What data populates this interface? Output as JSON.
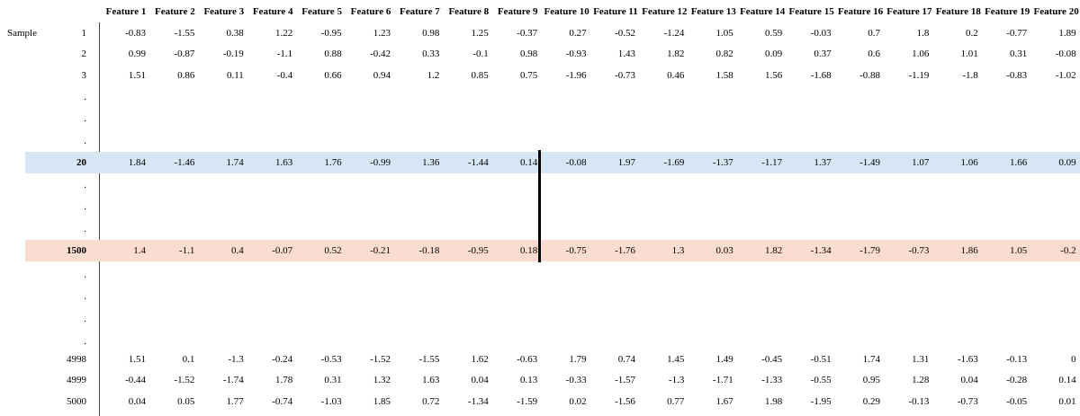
{
  "table": {
    "row_header": "Sample",
    "columns": [
      "Feature 1",
      "Feature 2",
      "Feature 3",
      "Feature 4",
      "Feature 5",
      "Feature 6",
      "Feature 7",
      "Feature 8",
      "Feature 9",
      "Feature 10",
      "Feature 11",
      "Feature 12",
      "Feature 13",
      "Feature 14",
      "Feature 15",
      "Feature 16",
      "Feature 17",
      "Feature 18",
      "Feature 19",
      "Feature 20"
    ],
    "rows": [
      {
        "sample": "1",
        "values": [
          -0.83,
          -1.55,
          0.38,
          1.22,
          -0.95,
          1.23,
          0.98,
          1.25,
          -0.37,
          0.27,
          -0.52,
          -1.24,
          1.05,
          0.59,
          -0.03,
          0.7,
          1.8,
          0.2,
          -0.77,
          1.89
        ]
      },
      {
        "sample": "2",
        "values": [
          0.99,
          -0.87,
          -0.19,
          -1.1,
          0.88,
          -0.42,
          0.33,
          -0.1,
          0.98,
          -0.93,
          1.43,
          1.82,
          0.82,
          0.09,
          0.37,
          0.6,
          1.06,
          1.01,
          0.31,
          -0.08
        ]
      },
      {
        "sample": "3",
        "values": [
          1.51,
          0.86,
          0.11,
          -0.4,
          0.66,
          0.94,
          1.2,
          0.85,
          0.75,
          -1.96,
          -0.73,
          0.46,
          1.58,
          1.56,
          -1.68,
          -0.88,
          -1.19,
          -1.8,
          -0.83,
          -1.02
        ]
      },
      {
        "sample": "."
      },
      {
        "sample": "."
      },
      {
        "sample": "."
      },
      {
        "sample": "20",
        "highlight": "#d6e6f5",
        "values": [
          1.84,
          -1.46,
          1.74,
          1.63,
          1.76,
          -0.99,
          1.36,
          -1.44,
          0.14,
          -0.08,
          1.97,
          -1.69,
          -1.37,
          -1.17,
          1.37,
          -1.49,
          1.07,
          1.06,
          1.66,
          0.09
        ]
      },
      {
        "sample": "."
      },
      {
        "sample": "."
      },
      {
        "sample": "."
      },
      {
        "sample": "1500",
        "highlight": "#fbdcd0",
        "values": [
          1.4,
          -1.1,
          0.4,
          -0.07,
          0.52,
          -0.21,
          -0.18,
          -0.95,
          0.18,
          -0.75,
          -1.76,
          1.3,
          0.03,
          1.82,
          -1.34,
          -1.79,
          -0.73,
          1.86,
          1.05,
          -0.2
        ]
      },
      {
        "sample": "."
      },
      {
        "sample": "."
      },
      {
        "sample": "."
      },
      {
        "sample": "."
      },
      {
        "sample": "4998",
        "values": [
          1.51,
          0.1,
          -1.3,
          -0.24,
          -0.53,
          -1.52,
          -1.55,
          1.62,
          -0.63,
          1.79,
          0.74,
          1.45,
          1.49,
          -0.45,
          -0.51,
          1.74,
          1.31,
          -1.63,
          -0.13,
          0
        ]
      },
      {
        "sample": "4999",
        "values": [
          -0.44,
          -1.52,
          -1.74,
          1.78,
          0.31,
          1.32,
          1.63,
          0.04,
          0.13,
          -0.33,
          -1.57,
          -1.3,
          -1.71,
          -1.33,
          -0.55,
          0.95,
          1.28,
          0.04,
          -0.28,
          0.14
        ]
      },
      {
        "sample": "5000",
        "values": [
          0.04,
          0.05,
          1.77,
          -0.74,
          -1.03,
          1.85,
          0.72,
          -1.34,
          -1.59,
          0.02,
          -1.56,
          0.77,
          1.67,
          1.98,
          -1.95,
          0.29,
          -0.13,
          -0.73,
          -0.05,
          0.01
        ]
      }
    ]
  }
}
